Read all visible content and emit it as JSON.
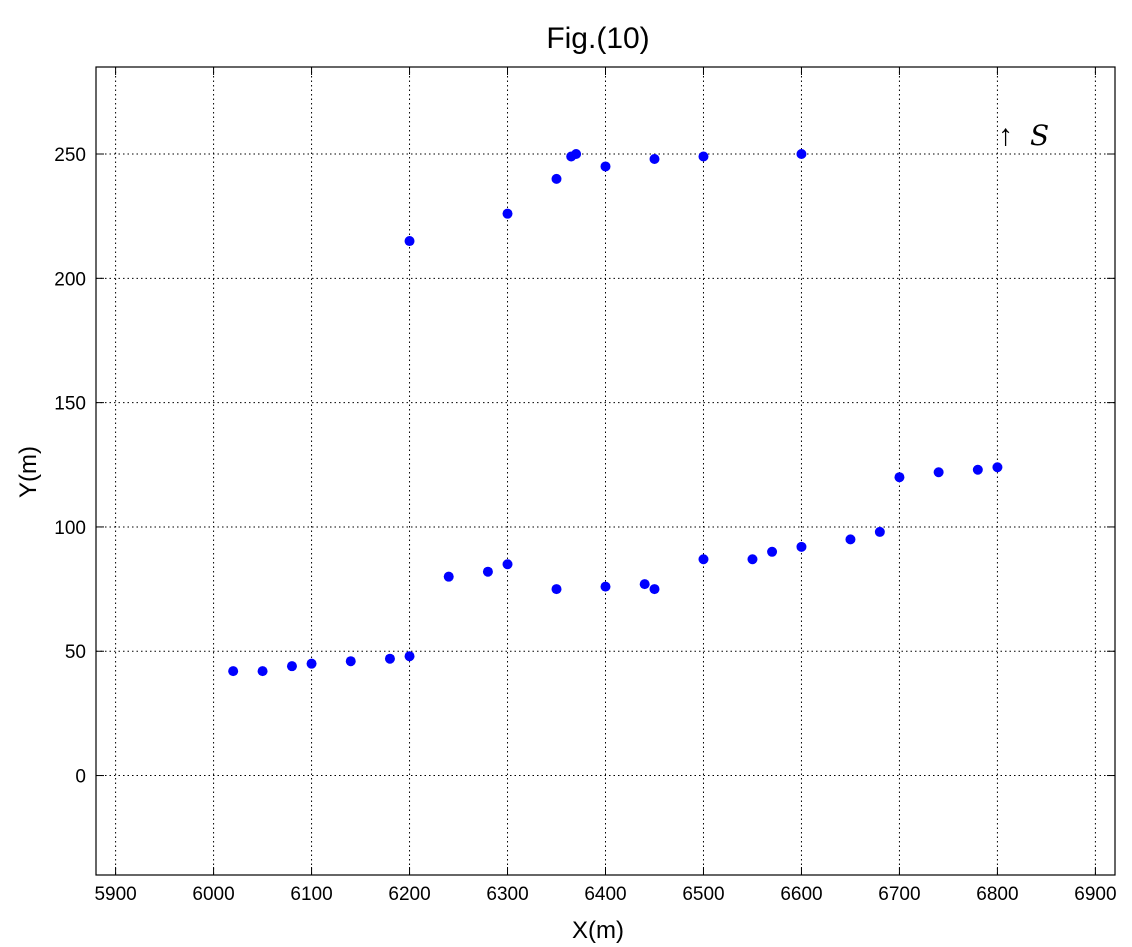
{
  "chart_data": {
    "type": "scatter",
    "title": "Fig.(10)",
    "xlabel": "X(m)",
    "ylabel": "Y(m)",
    "xlim": [
      5880,
      6920
    ],
    "ylim": [
      -40,
      285
    ],
    "xticks": [
      5900,
      6000,
      6100,
      6200,
      6300,
      6400,
      6500,
      6600,
      6700,
      6800,
      6900
    ],
    "yticks": [
      0,
      50,
      100,
      150,
      200,
      250
    ],
    "grid": true,
    "marker_color": "#0000ff",
    "annotation": {
      "arrow": "↑",
      "symbol": "S"
    },
    "series": [
      {
        "points": [
          [
            6200,
            215
          ],
          [
            6300,
            226
          ],
          [
            6350,
            240
          ],
          [
            6365,
            249
          ],
          [
            6370,
            250
          ],
          [
            6400,
            245
          ],
          [
            6450,
            248
          ],
          [
            6500,
            249
          ],
          [
            6600,
            250
          ]
        ]
      },
      {
        "points": [
          [
            6020,
            42
          ],
          [
            6050,
            42
          ],
          [
            6080,
            44
          ],
          [
            6100,
            45
          ],
          [
            6140,
            46
          ],
          [
            6180,
            47
          ],
          [
            6200,
            48
          ],
          [
            6240,
            80
          ],
          [
            6280,
            82
          ],
          [
            6300,
            85
          ],
          [
            6350,
            75
          ],
          [
            6400,
            76
          ],
          [
            6440,
            77
          ],
          [
            6450,
            75
          ],
          [
            6500,
            87
          ],
          [
            6550,
            87
          ],
          [
            6570,
            90
          ],
          [
            6600,
            92
          ],
          [
            6650,
            95
          ],
          [
            6680,
            98
          ],
          [
            6700,
            120
          ],
          [
            6740,
            122
          ],
          [
            6780,
            123
          ],
          [
            6800,
            124
          ]
        ]
      }
    ]
  }
}
